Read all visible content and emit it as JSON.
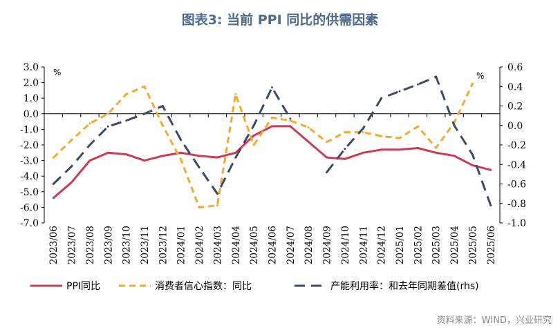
{
  "title": "图表3:   当前 PPI 同比的供需因素",
  "source": "资料来源：WIND，兴业研究",
  "chart_data": {
    "type": "line",
    "categories": [
      "2023/06",
      "2023/07",
      "2023/08",
      "2023/09",
      "2023/10",
      "2023/11",
      "2023/12",
      "2024/01",
      "2024/02",
      "2024/03",
      "2024/04",
      "2024/05",
      "2024/06",
      "2024/07",
      "2024/08",
      "2024/09",
      "2024/10",
      "2024/11",
      "2024/12",
      "2025/01",
      "2025/02",
      "2025/03",
      "2025/04",
      "2025/05",
      "2025/06"
    ],
    "y_left": {
      "unit": "%",
      "range": [
        -7.0,
        3.0
      ],
      "ticks": [
        "3.0",
        "2.0",
        "1.0",
        "0.0",
        "-1.0",
        "-2.0",
        "-3.0",
        "-4.0",
        "-5.0",
        "-6.0",
        "-7.0"
      ]
    },
    "y_right": {
      "unit": "%",
      "range": [
        -1.0,
        0.6
      ],
      "ticks": [
        "0.6",
        "0.4",
        "0.2",
        "0.0",
        "-0.2",
        "-0.4",
        "-0.6",
        "-0.8",
        "-1.0"
      ]
    },
    "series": [
      {
        "name": "PPI同比",
        "axis": "left",
        "style": "solid",
        "color": "#cc3a55",
        "values": [
          -5.4,
          -4.4,
          -3.0,
          -2.5,
          -2.6,
          -3.0,
          -2.7,
          -2.5,
          -2.7,
          -2.8,
          -2.5,
          -1.4,
          -0.8,
          -0.8,
          -1.8,
          -2.8,
          -2.9,
          -2.5,
          -2.3,
          -2.3,
          -2.2,
          -2.5,
          -2.7,
          -3.3,
          -3.6
        ]
      },
      {
        "name": "消费者信心指数：同比",
        "axis": "right",
        "style": "dash",
        "color": "#f2ab2f",
        "values": [
          -0.33,
          -0.15,
          0.02,
          0.12,
          0.32,
          0.4,
          0.0,
          -0.35,
          -0.84,
          -0.82,
          0.32,
          -0.2,
          0.08,
          0.05,
          -0.02,
          -0.17,
          -0.07,
          -0.07,
          -0.11,
          -0.13,
          -0.01,
          -0.23,
          0.03,
          0.43,
          null
        ]
      },
      {
        "name": "产能利用率：和去年同期差值(rhs)",
        "axis": "right",
        "style": "longdash",
        "color": "#3b4a66",
        "values": [
          -0.6,
          -0.42,
          -0.2,
          -0.01,
          0.05,
          0.12,
          0.2,
          -0.15,
          -0.43,
          -0.7,
          -0.33,
          0.0,
          0.39,
          0.07,
          null,
          -0.48,
          -0.24,
          -0.03,
          0.28,
          0.35,
          0.42,
          0.5,
          0.0,
          -0.3,
          -0.82
        ]
      }
    ]
  }
}
